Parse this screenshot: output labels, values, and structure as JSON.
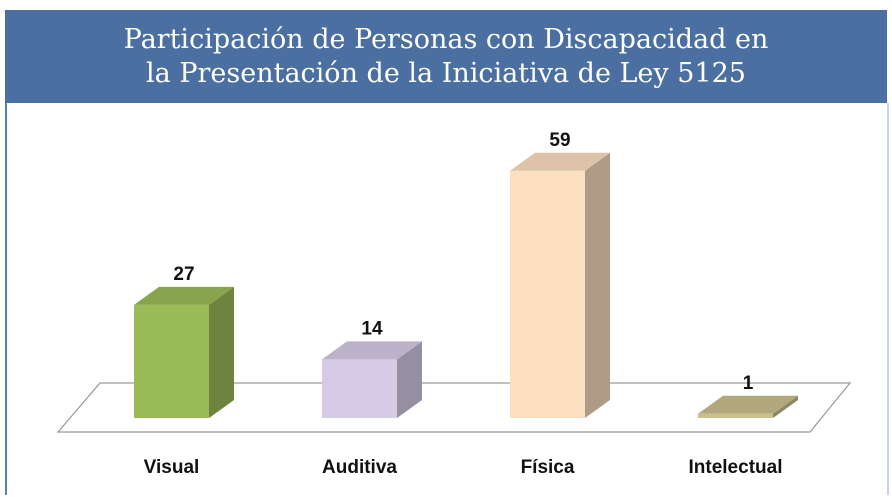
{
  "chart_data": {
    "type": "bar3d",
    "title": [
      "Participación de Personas con Discapacidad en",
      "la Presentación de la Iniciativa de Ley 5125"
    ],
    "categories": [
      "Visual",
      "Auditiva",
      "Física",
      "Intelectual"
    ],
    "values": [
      27,
      14,
      59,
      1
    ],
    "colors": [
      "#9bbb59",
      "#d6cbe6",
      "#fbdfbf",
      "#c9c08e"
    ]
  }
}
